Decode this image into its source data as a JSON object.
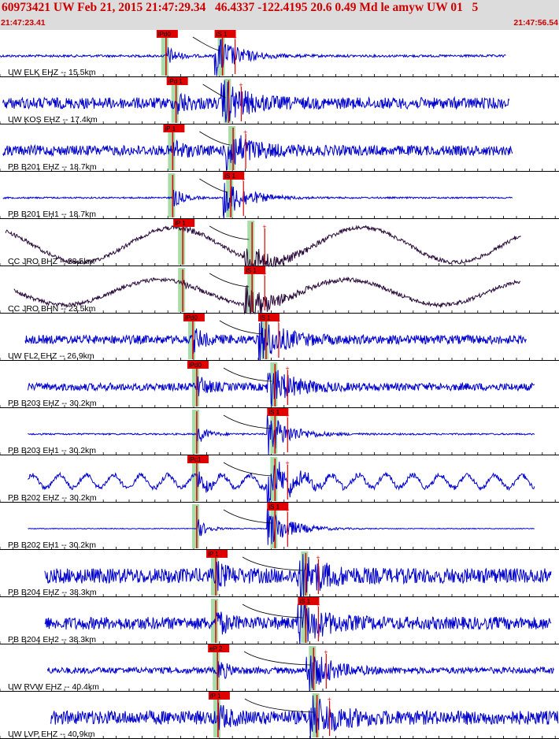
{
  "header": {
    "title": "60973421 UW Feb 21, 2015 21:47:29.34   46.4337 -122.4195 20.6 0.49 Md le amyw UW 01   5",
    "start_time": "21:47:23.41",
    "end_time": "21:47:56.54"
  },
  "colors": {
    "header_bg": "#dcdcdc",
    "header_text": "#cc0000",
    "trace_blue": "#0000cc",
    "trace_dark": "#2a0a3a",
    "pick_red": "#e00000",
    "window_green": "#a8dca8"
  },
  "chart_data": {
    "type": "line",
    "title": "60973421 UW Feb 21, 2015 21:47:29.34   46.4337 -122.4195 20.6 0.49 Md le amyw UW 01   5",
    "x_range": [
      "21:47:23.41",
      "21:47:56.54"
    ],
    "grid": "vertical tick marks",
    "traces": [
      {
        "label": "UW ELK EHZ -- 15.5km",
        "color": "blue",
        "style": "quiet",
        "start": 0.0,
        "end": 0.905,
        "p": 0.297,
        "s": 0.398,
        "p_label": "iPd0",
        "s_label": "iS 1",
        "amp": 3
      },
      {
        "label": "UW KOS EHZ -- 17.4km",
        "color": "blue",
        "style": "noise",
        "start": 0.005,
        "end": 0.912,
        "p": 0.315,
        "s": 0.409,
        "p_label": "iPd 1",
        "s_label": "",
        "amp": 9
      },
      {
        "label": "PB B201 EHZ -- 18.7km",
        "color": "blue",
        "style": "noise",
        "start": 0.005,
        "end": 0.917,
        "p": 0.309,
        "s": 0.417,
        "p_label": "iP 1",
        "s_label": "",
        "amp": 8
      },
      {
        "label": "PB B201 EH1 -- 18.7km",
        "color": "blue",
        "style": "quiet",
        "start": 0.005,
        "end": 0.917,
        "p": 0.309,
        "s": 0.413,
        "p_label": "",
        "s_label": "iS 1",
        "amp": 2
      },
      {
        "label": "CC JRO BHZ -- 23.5km",
        "color": "dark",
        "style": "wave",
        "start": 0.01,
        "end": 0.932,
        "p": 0.327,
        "s": 0.451,
        "p_label": "iP 1",
        "s_label": "",
        "amp": 22
      },
      {
        "label": "CC JRO BHN -- 23.5km",
        "color": "dark",
        "style": "wave",
        "start": 0.025,
        "end": 0.932,
        "p": 0.327,
        "s": 0.451,
        "p_label": "",
        "s_label": "iS 1",
        "amp": 16
      },
      {
        "label": "UW FL2 EHZ -- 26.9km",
        "color": "blue",
        "style": "noise",
        "start": 0.045,
        "end": 0.943,
        "p": 0.345,
        "s": 0.476,
        "p_label": "iPd0",
        "s_label": "iS 1",
        "amp": 7
      },
      {
        "label": "PB B203 EHZ -- 30.2km",
        "color": "blue",
        "style": "noise",
        "start": 0.05,
        "end": 0.957,
        "p": 0.352,
        "s": 0.492,
        "p_label": "iPd0",
        "s_label": "",
        "amp": 6
      },
      {
        "label": "PB B203 EH1 -- 30.2km",
        "color": "blue",
        "style": "quiet",
        "start": 0.05,
        "end": 0.957,
        "p": 0.352,
        "s": 0.492,
        "p_label": "",
        "s_label": "iS 1",
        "amp": 2
      },
      {
        "label": "PB B202 EHZ -- 30.2km",
        "color": "blue",
        "style": "wobble",
        "start": 0.05,
        "end": 0.957,
        "p": 0.352,
        "s": 0.492,
        "p_label": "iPc1",
        "s_label": "",
        "amp": 10
      },
      {
        "label": "PB B202 EH1 -- 30.2km",
        "color": "blue",
        "style": "quiet",
        "start": 0.05,
        "end": 0.957,
        "p": 0.352,
        "s": 0.492,
        "p_label": "",
        "s_label": "iS 1",
        "amp": 1
      },
      {
        "label": "PB B204 EHZ -- 38.3km",
        "color": "blue",
        "style": "noise",
        "start": 0.08,
        "end": 0.987,
        "p": 0.386,
        "s": 0.547,
        "p_label": "iP 1",
        "s_label": "",
        "amp": 12
      },
      {
        "label": "PB B204 EH2 -- 38.3km",
        "color": "blue",
        "style": "noise",
        "start": 0.08,
        "end": 0.987,
        "p": 0.386,
        "s": 0.547,
        "p_label": "",
        "s_label": "iS 1",
        "amp": 10
      },
      {
        "label": "UW RVW EHZ -- 40.4km",
        "color": "blue",
        "style": "noise",
        "start": 0.085,
        "end": 0.992,
        "p": 0.389,
        "s": 0.561,
        "p_label": "eP 2",
        "s_label": "",
        "amp": 5
      },
      {
        "label": "UW LVP EHZ -- 40.9km",
        "color": "blue",
        "style": "noise",
        "start": 0.09,
        "end": 0.999,
        "p": 0.39,
        "s": 0.567,
        "p_label": "iP 1",
        "s_label": "",
        "amp": 11
      }
    ]
  }
}
